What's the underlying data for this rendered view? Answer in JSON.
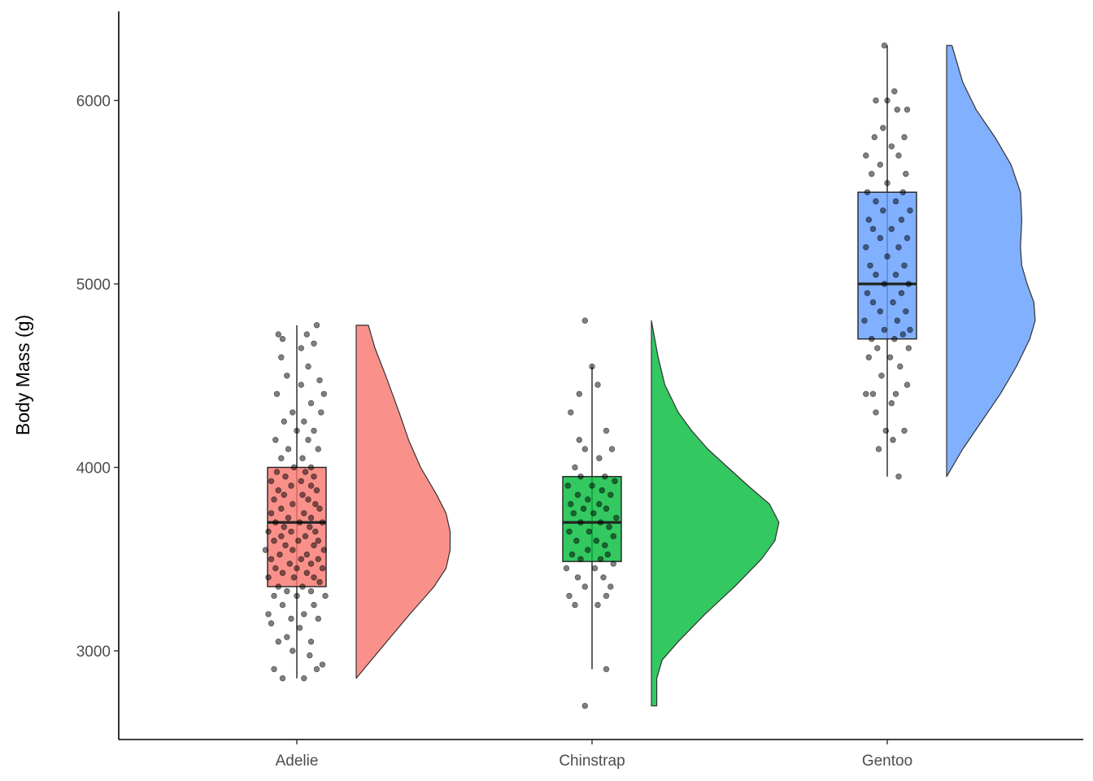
{
  "chart_data": {
    "type": "raincloud",
    "title": "",
    "xlabel": "",
    "ylabel": "Body Mass (g)",
    "ylim": [
      2525,
      6475
    ],
    "y_ticks": [
      3000,
      4000,
      5000,
      6000
    ],
    "grid": false,
    "legend": "none",
    "categories": [
      "Adelie",
      "Chinstrap",
      "Gentoo"
    ],
    "series": [
      {
        "category": "Adelie",
        "color": "#F8766D",
        "box": {
          "min": 2850,
          "q1": 3350,
          "median": 3700,
          "q3": 4000,
          "max": 4775
        },
        "density": {
          "y": [
            2850,
            3000,
            3200,
            3350,
            3450,
            3550,
            3650,
            3750,
            3850,
            4000,
            4150,
            4300,
            4500,
            4650,
            4775
          ],
          "w": [
            0.0,
            0.17,
            0.4,
            0.58,
            0.67,
            0.7,
            0.7,
            0.67,
            0.6,
            0.48,
            0.39,
            0.32,
            0.22,
            0.14,
            0.09
          ]
        },
        "points": [
          [
            -0.16,
            2900
          ],
          [
            -0.1,
            2850
          ],
          [
            0.05,
            2850
          ],
          [
            0.14,
            2900
          ],
          [
            0.18,
            2925
          ],
          [
            -0.03,
            3000
          ],
          [
            0.09,
            2975
          ],
          [
            -0.13,
            3050
          ],
          [
            -0.07,
            3075
          ],
          [
            0.1,
            3050
          ],
          [
            -0.18,
            3150
          ],
          [
            -0.04,
            3175
          ],
          [
            0.02,
            3125
          ],
          [
            0.15,
            3175
          ],
          [
            -0.2,
            3200
          ],
          [
            -0.1,
            3250
          ],
          [
            0.05,
            3200
          ],
          [
            0.12,
            3250
          ],
          [
            -0.16,
            3300
          ],
          [
            0.0,
            3300
          ],
          [
            0.2,
            3300
          ],
          [
            -0.07,
            3325
          ],
          [
            0.1,
            3325
          ],
          [
            -0.13,
            3350
          ],
          [
            0.04,
            3350
          ],
          [
            0.16,
            3375
          ],
          [
            -0.2,
            3400
          ],
          [
            -0.02,
            3400
          ],
          [
            0.12,
            3400
          ],
          [
            -0.1,
            3425
          ],
          [
            0.07,
            3425
          ],
          [
            -0.15,
            3450
          ],
          [
            0.0,
            3450
          ],
          [
            0.18,
            3450
          ],
          [
            -0.05,
            3475
          ],
          [
            0.1,
            3475
          ],
          [
            -0.18,
            3500
          ],
          [
            0.03,
            3500
          ],
          [
            0.15,
            3500
          ],
          [
            -0.12,
            3525
          ],
          [
            0.07,
            3525
          ],
          [
            -0.22,
            3550
          ],
          [
            -0.03,
            3550
          ],
          [
            0.19,
            3550
          ],
          [
            -0.08,
            3575
          ],
          [
            0.12,
            3575
          ],
          [
            -0.16,
            3600
          ],
          [
            0.01,
            3600
          ],
          [
            0.15,
            3600
          ],
          [
            -0.11,
            3625
          ],
          [
            0.06,
            3625
          ],
          [
            -0.2,
            3650
          ],
          [
            -0.04,
            3650
          ],
          [
            0.13,
            3650
          ],
          [
            -0.09,
            3675
          ],
          [
            0.09,
            3675
          ],
          [
            -0.15,
            3700
          ],
          [
            0.02,
            3700
          ],
          [
            0.18,
            3700
          ],
          [
            -0.06,
            3725
          ],
          [
            0.1,
            3725
          ],
          [
            -0.18,
            3750
          ],
          [
            0.05,
            3750
          ],
          [
            0.16,
            3775
          ],
          [
            -0.11,
            3775
          ],
          [
            -0.03,
            3800
          ],
          [
            0.13,
            3800
          ],
          [
            -0.16,
            3825
          ],
          [
            0.08,
            3825
          ],
          [
            -0.09,
            3850
          ],
          [
            0.04,
            3850
          ],
          [
            -0.13,
            3875
          ],
          [
            0.14,
            3875
          ],
          [
            -0.04,
            3900
          ],
          [
            0.1,
            3900
          ],
          [
            -0.18,
            3925
          ],
          [
            0.03,
            3925
          ],
          [
            -0.08,
            3950
          ],
          [
            0.12,
            3950
          ],
          [
            -0.14,
            3975
          ],
          [
            0.06,
            3975
          ],
          [
            -0.02,
            4000
          ],
          [
            0.1,
            4000
          ],
          [
            -0.11,
            4050
          ],
          [
            0.04,
            4050
          ],
          [
            0.15,
            4100
          ],
          [
            -0.06,
            4100
          ],
          [
            0.08,
            4150
          ],
          [
            -0.15,
            4150
          ],
          [
            0.0,
            4200
          ],
          [
            0.12,
            4200
          ],
          [
            -0.09,
            4250
          ],
          [
            0.05,
            4250
          ],
          [
            0.17,
            4300
          ],
          [
            -0.03,
            4300
          ],
          [
            0.1,
            4350
          ],
          [
            -0.14,
            4400
          ],
          [
            0.19,
            4400
          ],
          [
            0.03,
            4450
          ],
          [
            0.16,
            4475
          ],
          [
            -0.07,
            4500
          ],
          [
            0.08,
            4550
          ],
          [
            -0.11,
            4600
          ],
          [
            0.03,
            4650
          ],
          [
            0.12,
            4675
          ],
          [
            -0.1,
            4700
          ],
          [
            -0.13,
            4725
          ],
          [
            0.07,
            4725
          ],
          [
            0.14,
            4775
          ]
        ]
      },
      {
        "category": "Chinstrap",
        "color": "#00BA38",
        "box": {
          "min": 2900,
          "q1": 3487,
          "median": 3700,
          "q3": 3950,
          "max": 4550
        },
        "density": {
          "y": [
            2700,
            2850,
            2950,
            3050,
            3200,
            3350,
            3500,
            3600,
            3700,
            3800,
            3900,
            4000,
            4100,
            4200,
            4300,
            4450,
            4600,
            4800
          ],
          "w": [
            0.04,
            0.04,
            0.08,
            0.2,
            0.4,
            0.62,
            0.82,
            0.92,
            0.95,
            0.88,
            0.72,
            0.57,
            0.42,
            0.3,
            0.2,
            0.1,
            0.05,
            0.0
          ]
        },
        "points": [
          [
            -0.05,
            2700
          ],
          [
            0.1,
            2900
          ],
          [
            -0.12,
            3250
          ],
          [
            0.04,
            3250
          ],
          [
            -0.16,
            3300
          ],
          [
            0.1,
            3300
          ],
          [
            -0.05,
            3350
          ],
          [
            0.13,
            3350
          ],
          [
            -0.1,
            3400
          ],
          [
            0.08,
            3400
          ],
          [
            -0.18,
            3450
          ],
          [
            0.02,
            3450
          ],
          [
            0.15,
            3475
          ],
          [
            -0.08,
            3500
          ],
          [
            0.06,
            3500
          ],
          [
            -0.14,
            3525
          ],
          [
            0.11,
            3525
          ],
          [
            -0.03,
            3550
          ],
          [
            0.09,
            3575
          ],
          [
            -0.11,
            3600
          ],
          [
            0.03,
            3600
          ],
          [
            0.15,
            3625
          ],
          [
            -0.16,
            3650
          ],
          [
            -0.02,
            3650
          ],
          [
            0.12,
            3675
          ],
          [
            -0.08,
            3700
          ],
          [
            0.06,
            3700
          ],
          [
            0.17,
            3725
          ],
          [
            -0.13,
            3750
          ],
          [
            0.01,
            3750
          ],
          [
            -0.06,
            3775
          ],
          [
            0.1,
            3775
          ],
          [
            -0.15,
            3800
          ],
          [
            0.05,
            3800
          ],
          [
            -0.03,
            3825
          ],
          [
            0.13,
            3850
          ],
          [
            -0.1,
            3850
          ],
          [
            0.07,
            3875
          ],
          [
            -0.17,
            3900
          ],
          [
            0.0,
            3900
          ],
          [
            0.16,
            3925
          ],
          [
            -0.08,
            3950
          ],
          [
            0.09,
            3950
          ],
          [
            -0.12,
            4000
          ],
          [
            0.05,
            4050
          ],
          [
            -0.05,
            4100
          ],
          [
            0.14,
            4100
          ],
          [
            -0.09,
            4150
          ],
          [
            0.1,
            4200
          ],
          [
            -0.15,
            4300
          ],
          [
            -0.09,
            4400
          ],
          [
            0.04,
            4450
          ],
          [
            0.0,
            4550
          ],
          [
            -0.05,
            4800
          ]
        ]
      },
      {
        "category": "Gentoo",
        "color": "#619CFF",
        "box": {
          "min": 3950,
          "q1": 4700,
          "median": 5000,
          "q3": 5500,
          "max": 6300
        },
        "density": {
          "y": [
            3950,
            4100,
            4250,
            4400,
            4550,
            4700,
            4800,
            4900,
            5000,
            5100,
            5200,
            5350,
            5500,
            5650,
            5800,
            5950,
            6100,
            6300
          ],
          "w": [
            0.0,
            0.12,
            0.26,
            0.4,
            0.52,
            0.62,
            0.66,
            0.65,
            0.6,
            0.56,
            0.55,
            0.56,
            0.55,
            0.48,
            0.36,
            0.22,
            0.12,
            0.04
          ]
        },
        "points": [
          [
            0.08,
            3950
          ],
          [
            -0.06,
            4100
          ],
          [
            0.04,
            4150
          ],
          [
            -0.01,
            4200
          ],
          [
            0.12,
            4200
          ],
          [
            -0.08,
            4300
          ],
          [
            0.03,
            4350
          ],
          [
            -0.1,
            4400
          ],
          [
            0.06,
            4400
          ],
          [
            -0.15,
            4400
          ],
          [
            0.14,
            4450
          ],
          [
            -0.04,
            4500
          ],
          [
            0.09,
            4550
          ],
          [
            -0.13,
            4600
          ],
          [
            0.02,
            4600
          ],
          [
            0.15,
            4650
          ],
          [
            -0.07,
            4650
          ],
          [
            0.05,
            4700
          ],
          [
            -0.11,
            4700
          ],
          [
            0.11,
            4725
          ],
          [
            -0.02,
            4750
          ],
          [
            0.16,
            4750
          ],
          [
            -0.16,
            4800
          ],
          [
            0.07,
            4800
          ],
          [
            -0.05,
            4850
          ],
          [
            0.13,
            4850
          ],
          [
            -0.1,
            4900
          ],
          [
            0.04,
            4900
          ],
          [
            -0.14,
            4950
          ],
          [
            0.1,
            4950
          ],
          [
            -0.02,
            5000
          ],
          [
            0.15,
            5000
          ],
          [
            -0.08,
            5050
          ],
          [
            0.06,
            5050
          ],
          [
            -0.12,
            5100
          ],
          [
            0.12,
            5100
          ],
          [
            0.0,
            5150
          ],
          [
            -0.15,
            5200
          ],
          [
            0.08,
            5200
          ],
          [
            -0.05,
            5250
          ],
          [
            0.14,
            5250
          ],
          [
            -0.1,
            5300
          ],
          [
            0.03,
            5300
          ],
          [
            -0.13,
            5350
          ],
          [
            0.1,
            5350
          ],
          [
            -0.03,
            5400
          ],
          [
            0.16,
            5400
          ],
          [
            -0.08,
            5450
          ],
          [
            0.06,
            5450
          ],
          [
            -0.14,
            5500
          ],
          [
            0.11,
            5500
          ],
          [
            0.0,
            5550
          ],
          [
            -0.11,
            5600
          ],
          [
            0.13,
            5600
          ],
          [
            -0.05,
            5650
          ],
          [
            0.08,
            5700
          ],
          [
            -0.15,
            5700
          ],
          [
            0.03,
            5750
          ],
          [
            -0.09,
            5800
          ],
          [
            0.12,
            5800
          ],
          [
            -0.03,
            5850
          ],
          [
            0.07,
            5950
          ],
          [
            -0.08,
            6000
          ],
          [
            0.0,
            6000
          ],
          [
            0.05,
            6050
          ],
          [
            0.14,
            5950
          ],
          [
            -0.02,
            6300
          ]
        ]
      }
    ]
  }
}
